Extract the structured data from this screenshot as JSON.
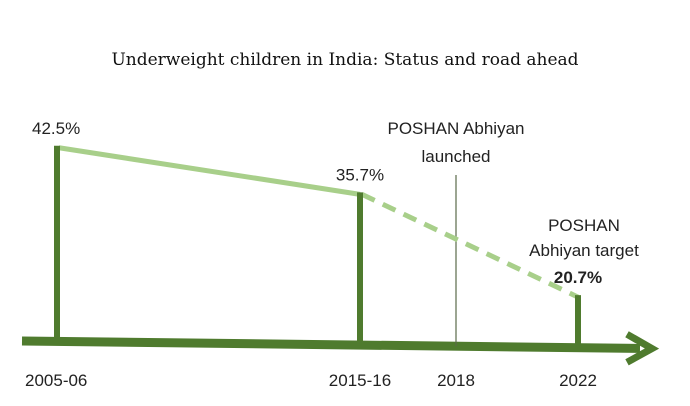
{
  "chart_data": {
    "type": "line",
    "title": "Underweight children in India: Status and road ahead",
    "xlabel": "",
    "ylabel": "",
    "categories": [
      "2005-06",
      "2015-16",
      "2018",
      "2022"
    ],
    "points": [
      {
        "x": "2005-06",
        "value": 42.5,
        "label": "42.5%",
        "style": "solid"
      },
      {
        "x": "2015-16",
        "value": 35.7,
        "label": "35.7%",
        "style": "solid"
      },
      {
        "x": "2022",
        "value": 20.7,
        "label": "20.7%",
        "style": "dashed-target"
      }
    ],
    "annotations": [
      {
        "x": "2018",
        "text_lines": [
          "POSHAN Abhiyan",
          "launched"
        ]
      },
      {
        "x": "2022",
        "text_lines": [
          "POSHAN",
          "Abhiyan target"
        ]
      }
    ],
    "colors": {
      "bar": "#4f7b2e",
      "trend": "#a8cf8a",
      "axis": "#4f7b2e",
      "marker": "#5a6a4a"
    }
  }
}
